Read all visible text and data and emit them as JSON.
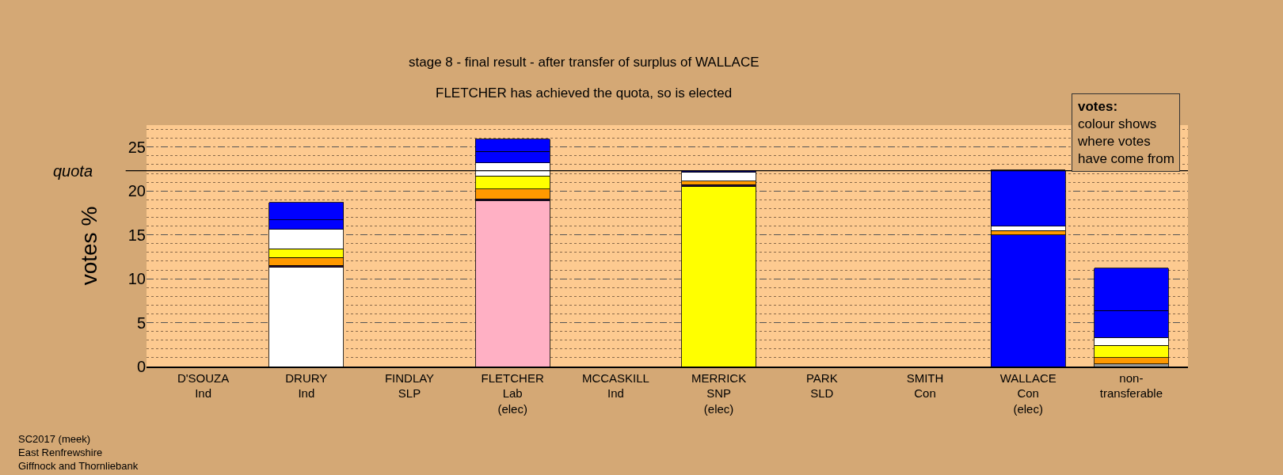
{
  "chart_data": {
    "type": "bar",
    "stacked": true,
    "title": "stage 8 - final result - after transfer of surplus of WALLACE",
    "subtitle": "FLETCHER has achieved the quota, so is elected",
    "ylabel": "votes %",
    "categories": [
      "D'SOUZA\nInd",
      "DRURY\nInd",
      "FINDLAY\nSLP",
      "FLETCHER\nLab\n(elec)",
      "MCCASKILL\nInd",
      "MERRICK\nSNP\n(elec)",
      "PARK\nSLD",
      "SMITH\nCon",
      "WALLACE\nCon\n(elec)",
      "non-\ntransferable"
    ],
    "series": [
      {
        "colors": [
          "#ffffff",
          "#ffffff",
          "#ffffff",
          "#ffb0c4",
          "#ffffff",
          "#ffff00",
          "#ffffff",
          "#0000ff",
          "#0000ff",
          "#999999"
        ],
        "values": [
          null,
          11.3,
          null,
          18.9,
          null,
          20.5,
          null,
          null,
          15.0,
          0.3
        ]
      },
      {
        "colors": [
          "#2b1040",
          "#2b1040",
          "#2b1040",
          "#2b1040",
          "#2b1040",
          "#2b1040",
          "#2b1040",
          "#2b1040",
          "#2b1040",
          "#2b1040"
        ],
        "values": [
          null,
          0.2,
          null,
          0.2,
          null,
          0.2,
          null,
          null,
          null,
          null
        ]
      },
      {
        "colors": [
          "#ff9900",
          "#ff9900",
          "#ff9900",
          "#ff9900",
          "#ff9900",
          "#ff9900",
          "#ff9900",
          "#ff9900",
          "#ff9900",
          "#ff9900"
        ],
        "values": [
          null,
          0.9,
          null,
          1.1,
          null,
          0.4,
          null,
          null,
          0.5,
          0.7
        ]
      },
      {
        "colors": [
          "#ffff00",
          "#ffff00",
          "#ffff00",
          "#ffff00",
          "#ffff00",
          "#ffff00",
          "#ffff00",
          "#ffff00",
          "#ffff00",
          "#ffff00"
        ],
        "values": [
          null,
          1.0,
          null,
          1.5,
          null,
          null,
          null,
          null,
          null,
          1.4
        ]
      },
      {
        "colors": [
          "#ffffff",
          "#ffffff",
          "#ffffff",
          "#ffffff",
          "#ffffff",
          "#ffffff",
          "#ffffff",
          "#ffffff",
          "#ffffff",
          "#ffffff"
        ],
        "values": [
          null,
          2.2,
          null,
          1.5,
          null,
          1.0,
          null,
          null,
          0.5,
          0.9
        ]
      },
      {
        "colors": [
          "#0000ff",
          "#0000ff",
          "#0000ff",
          "#0000ff",
          "#0000ff",
          "#000080",
          "#0000ff",
          "#0000ff",
          "#0000ff",
          "#0000ff"
        ],
        "values": [
          null,
          1.1,
          null,
          1.3,
          null,
          0.2,
          null,
          null,
          6.4,
          3.1
        ]
      },
      {
        "colors": [
          "#0000ff",
          "#0000ff",
          "#0000ff",
          "#0000ff",
          "#0000ff",
          "#0000ff",
          "#0000ff",
          "#0000ff",
          "#0000ff",
          "#0000ff"
        ],
        "values": [
          null,
          2.0,
          null,
          1.4,
          null,
          null,
          null,
          null,
          null,
          4.8
        ]
      }
    ],
    "ylim": [
      0,
      27.5
    ],
    "yticks": [
      0,
      5,
      10,
      15,
      20,
      25
    ],
    "grid": "y",
    "ref_lines": [
      {
        "axis": "y",
        "value": 22.3,
        "label": "quota"
      }
    ],
    "annotations": [
      "SC2017 (meek)\nEast Renfrewshire\nGiffnock and Thornliebank",
      "votes:\ncolour shows\nwhere votes\nhave come from"
    ]
  }
}
